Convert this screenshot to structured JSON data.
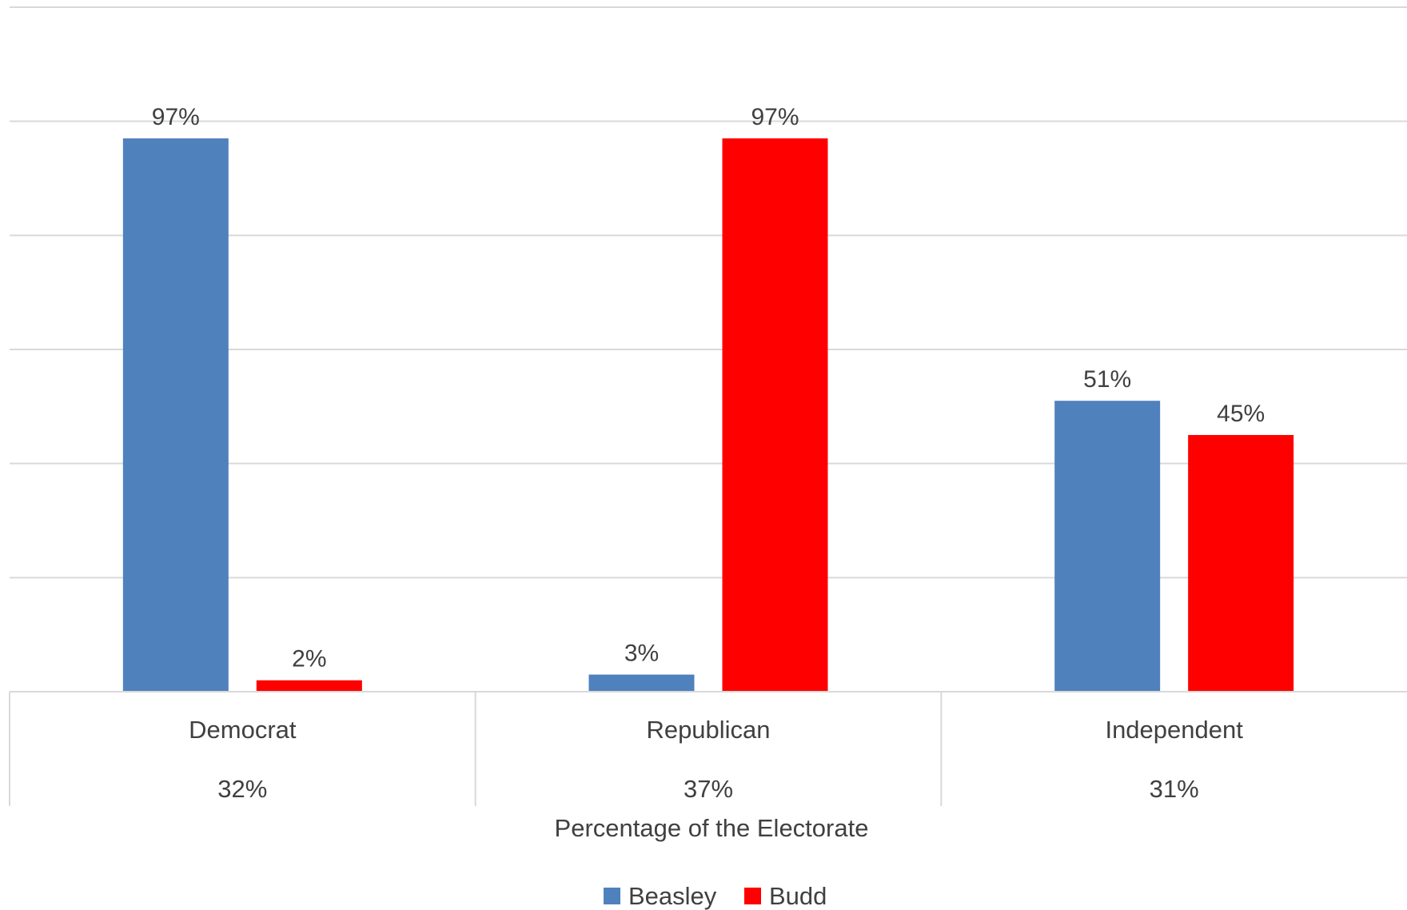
{
  "chart_data": {
    "type": "bar",
    "categories": [
      "Democrat",
      "Republican",
      "Independent"
    ],
    "category_shares": [
      "32%",
      "37%",
      "31%"
    ],
    "series": [
      {
        "name": "Beasley",
        "color": "#4F81BD",
        "values": [
          97,
          3,
          51
        ],
        "labels": [
          "97%",
          "3%",
          "51%"
        ]
      },
      {
        "name": "Budd",
        "color": "#FF0000",
        "values": [
          2,
          97,
          45
        ],
        "labels": [
          "2%",
          "97%",
          "45%"
        ]
      }
    ],
    "xlabel": "Percentage of the Electorate",
    "ylim": [
      0,
      120
    ],
    "grid": true,
    "legend": "bottom-center"
  }
}
